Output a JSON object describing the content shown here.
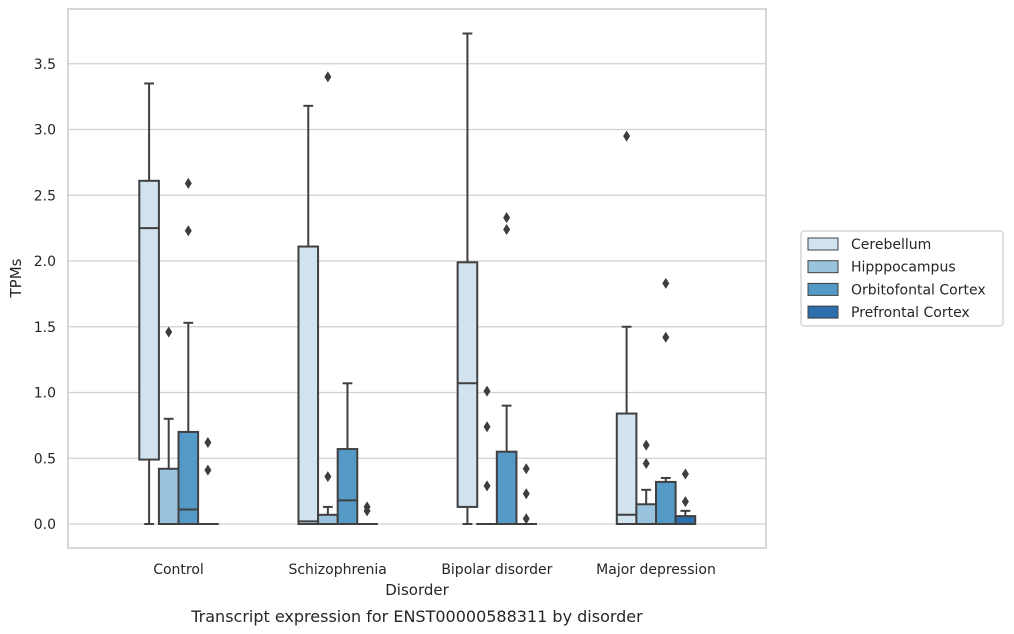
{
  "chart_data": {
    "type": "box",
    "xlabel": "Disorder",
    "ylabel": "TPMs",
    "caption": "Transcript expression for ENST00000588311 by disorder",
    "ylim": [
      -0.18,
      3.9
    ],
    "yticks": [
      "0.0",
      "0.5",
      "1.0",
      "1.5",
      "2.0",
      "2.5",
      "3.0",
      "3.5"
    ],
    "grid": "horizontal",
    "legend_position": "right",
    "categories": [
      "Control",
      "Schizophrenia",
      "Bipolar disorder",
      "Major depression"
    ],
    "series": [
      {
        "name": "Cerebellum",
        "color": "#d2e3f0",
        "boxes": [
          {
            "whislo": 0.0,
            "q1": 0.49,
            "med": 2.25,
            "q3": 2.61,
            "whishi": 3.35,
            "fliers": []
          },
          {
            "whislo": 0.0,
            "q1": 0.0,
            "med": 0.02,
            "q3": 2.11,
            "whishi": 3.18,
            "fliers": []
          },
          {
            "whislo": 0.0,
            "q1": 0.13,
            "med": 1.07,
            "q3": 1.99,
            "whishi": 3.73,
            "fliers": []
          },
          {
            "whislo": 0.0,
            "q1": 0.0,
            "med": 0.07,
            "q3": 0.84,
            "whishi": 1.5,
            "fliers": [
              2.95
            ]
          }
        ]
      },
      {
        "name": "Hipppocampus",
        "color": "#9ac3dd",
        "boxes": [
          {
            "whislo": 0.0,
            "q1": 0.0,
            "med": 0.0,
            "q3": 0.42,
            "whishi": 0.8,
            "fliers": [
              1.46
            ]
          },
          {
            "whislo": 0.0,
            "q1": 0.0,
            "med": 0.0,
            "q3": 0.07,
            "whishi": 0.13,
            "fliers": [
              0.36,
              3.4
            ]
          },
          {
            "whislo": 0.0,
            "q1": 0.0,
            "med": 0.0,
            "q3": 0.0,
            "whishi": 0.0,
            "fliers": [
              0.29,
              0.74,
              1.01
            ]
          },
          {
            "whislo": 0.0,
            "q1": 0.0,
            "med": 0.0,
            "q3": 0.15,
            "whishi": 0.26,
            "fliers": [
              0.46,
              0.6
            ]
          }
        ]
      },
      {
        "name": "Orbitofontal Cortex",
        "color": "#5599c7",
        "boxes": [
          {
            "whislo": 0.0,
            "q1": 0.0,
            "med": 0.11,
            "q3": 0.7,
            "whishi": 1.53,
            "fliers": [
              2.23,
              2.59
            ]
          },
          {
            "whislo": 0.0,
            "q1": 0.0,
            "med": 0.18,
            "q3": 0.57,
            "whishi": 1.07,
            "fliers": []
          },
          {
            "whislo": 0.0,
            "q1": 0.0,
            "med": 0.0,
            "q3": 0.55,
            "whishi": 0.9,
            "fliers": [
              2.24,
              2.33
            ]
          },
          {
            "whislo": 0.0,
            "q1": 0.0,
            "med": 0.0,
            "q3": 0.32,
            "whishi": 0.35,
            "fliers": [
              1.42,
              1.83
            ]
          }
        ]
      },
      {
        "name": "Prefrontal Cortex",
        "color": "#2d6fac",
        "boxes": [
          {
            "whislo": 0.0,
            "q1": 0.0,
            "med": 0.0,
            "q3": 0.0,
            "whishi": 0.0,
            "fliers": [
              0.41,
              0.62
            ]
          },
          {
            "whislo": 0.0,
            "q1": 0.0,
            "med": 0.0,
            "q3": 0.0,
            "whishi": 0.0,
            "fliers": [
              0.1,
              0.13
            ]
          },
          {
            "whislo": 0.0,
            "q1": 0.0,
            "med": 0.0,
            "q3": 0.0,
            "whishi": 0.0,
            "fliers": [
              0.04,
              0.23,
              0.42
            ]
          },
          {
            "whislo": 0.0,
            "q1": 0.0,
            "med": 0.0,
            "q3": 0.06,
            "whishi": 0.1,
            "fliers": [
              0.17,
              0.38
            ]
          }
        ]
      }
    ]
  }
}
